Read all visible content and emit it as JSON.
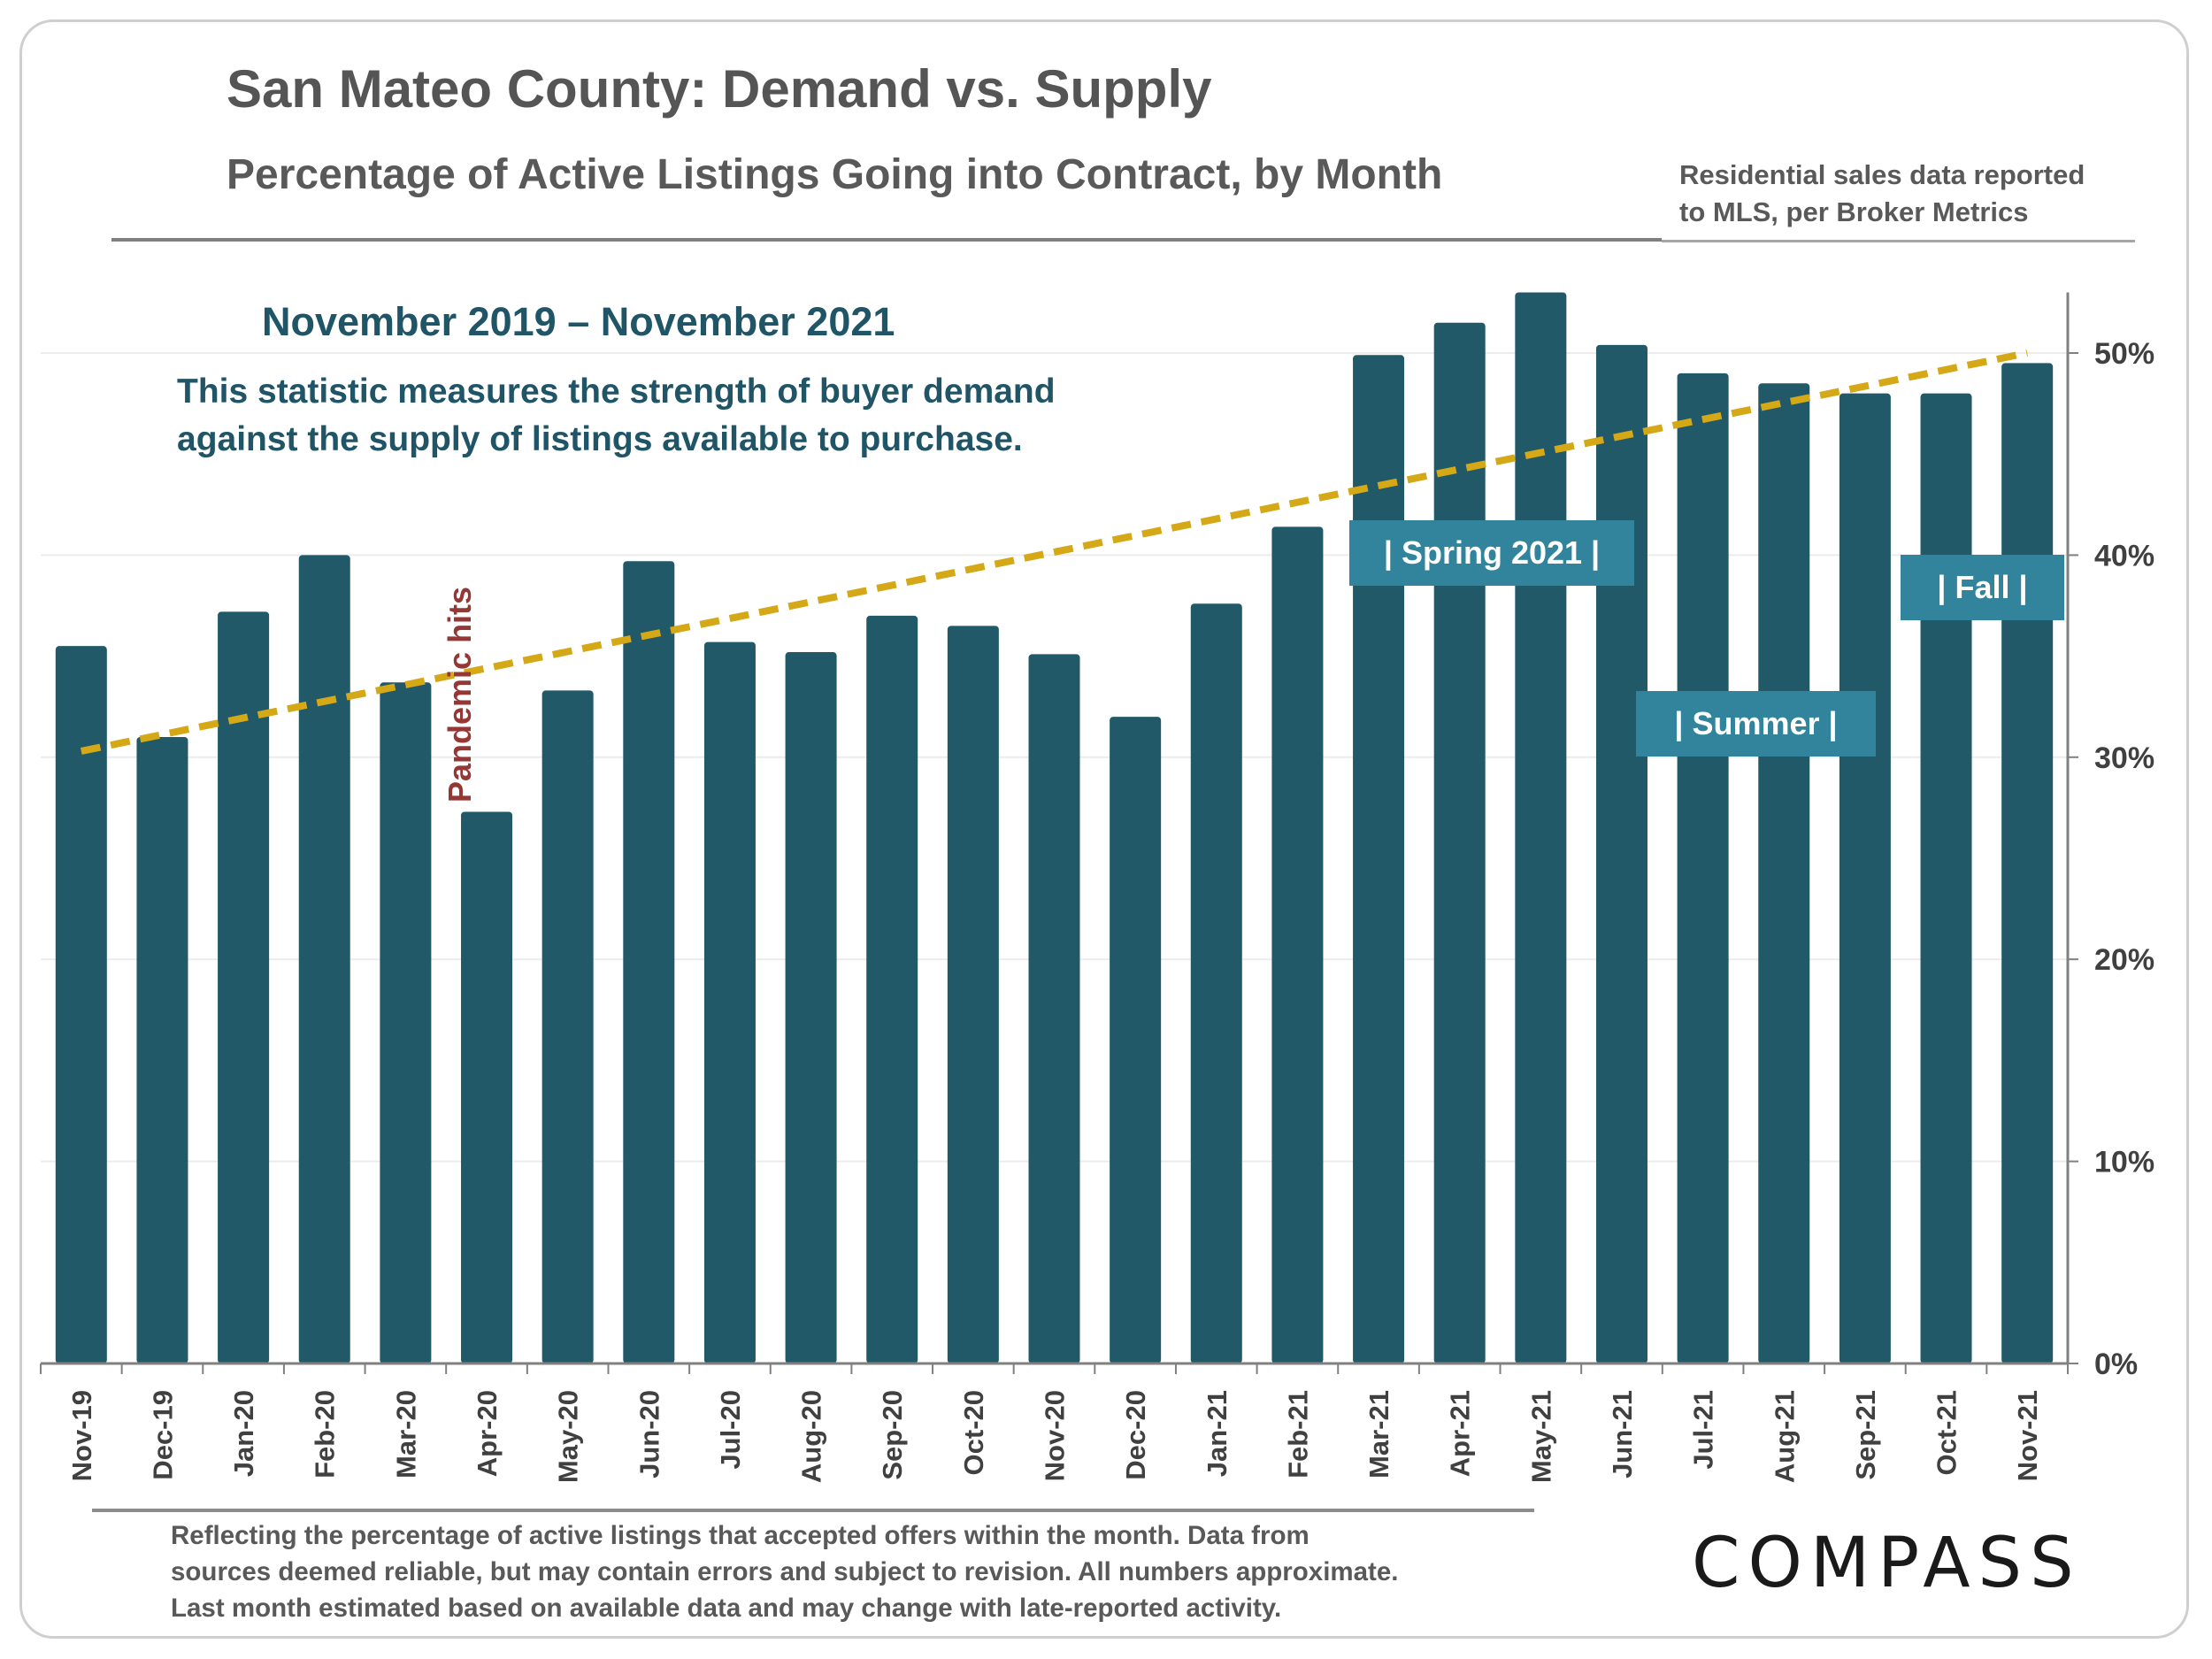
{
  "header": {
    "title": "San Mateo County: Demand vs. Supply",
    "subtitle": "Percentage of Active Listings Going into Contract, by Month",
    "source_line1": "Residential sales data reported",
    "source_line2": "to MLS, per Broker Metrics"
  },
  "annotations": {
    "date_range": "November 2019 – November 2021",
    "description_line1": "This statistic measures the strength of buyer demand",
    "description_line2": "against the supply of listings available to purchase.",
    "pandemic": "Pandemic hits",
    "spring": "| Spring 2021 |",
    "summer": "| Summer |",
    "fall": "| Fall |"
  },
  "footer": {
    "line1": "Reflecting the percentage of active listings that accepted offers within the month. Data from",
    "line2": "sources deemed reliable, but may contain errors and subject to revision. All numbers approximate.",
    "line3": "Last month estimated based on available data and may change with late-reported activity.",
    "logo": "COMPASS"
  },
  "colors": {
    "bar": "#215968",
    "trend": "#d4a816",
    "annotation_box": "#31849b",
    "pandemic_text": "#953735",
    "heading_teal": "#1f5566"
  },
  "chart_data": {
    "type": "bar",
    "categories": [
      "Nov-19",
      "Dec-19",
      "Jan-20",
      "Feb-20",
      "Mar-20",
      "Apr-20",
      "May-20",
      "Jun-20",
      "Jul-20",
      "Aug-20",
      "Sep-20",
      "Oct-20",
      "Nov-20",
      "Dec-20",
      "Jan-21",
      "Feb-21",
      "Mar-21",
      "Apr-21",
      "May-21",
      "Jun-21",
      "Jul-21",
      "Aug-21",
      "Sep-21",
      "Oct-21",
      "Nov-21"
    ],
    "values": [
      35.5,
      31.0,
      37.2,
      40.0,
      33.7,
      27.3,
      33.3,
      39.7,
      35.7,
      35.2,
      37.0,
      36.5,
      35.1,
      32.0,
      37.6,
      41.4,
      49.9,
      51.5,
      53.0,
      50.4,
      49.0,
      48.5,
      48.0,
      48.0,
      49.5
    ],
    "ylim": [
      0,
      53
    ],
    "y_ticks": [
      0,
      10,
      20,
      30,
      40,
      50
    ],
    "y_tick_labels": [
      "0%",
      "10%",
      "20%",
      "30%",
      "40%",
      "50%"
    ],
    "y_axis_side": "right",
    "grid": true,
    "trendline": {
      "style": "dashed",
      "start": 30.3,
      "end": 50.0
    }
  }
}
